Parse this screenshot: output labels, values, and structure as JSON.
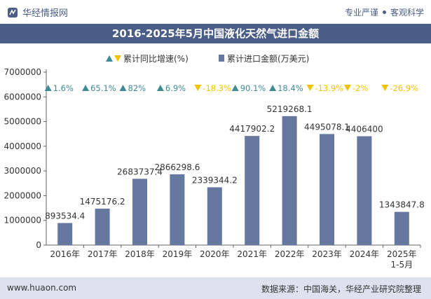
{
  "header": {
    "brand": "华经情报网",
    "tagline_left": "专业严谨",
    "tagline_right": "客观科学"
  },
  "footer": {
    "site": "www.huaon.com",
    "source": "数据来源：中国海关，华经产业研究院整理"
  },
  "colors": {
    "bar": "#6677a0",
    "header": "#4a5d87",
    "up": "#3f8a93",
    "down": "#f2c200"
  },
  "chart_data": {
    "type": "bar",
    "title": "2016-2025年5月中国液化天然气进口金额",
    "categories": [
      "2016年",
      "2017年",
      "2018年",
      "2019年",
      "2020年",
      "2021年",
      "2022年",
      "2023年",
      "2024年",
      "2025年\n1-5月"
    ],
    "series": [
      {
        "name": "累计进口金额(万美元)",
        "values": [
          893534.4,
          1475176.2,
          2683737.4,
          2866298.6,
          2339344.2,
          4417902.2,
          5219268.1,
          4495078.1,
          4406400,
          1343847.8
        ],
        "labels": [
          "893534.4",
          "1475176.2",
          "2683737.4",
          "2866298.6",
          "2339344.2",
          "4417902.2",
          "5219268.1",
          "4495078.1",
          "4406400",
          "1343847.8"
        ]
      },
      {
        "name": "累计同比增速(%)",
        "values": [
          1.6,
          65.1,
          82,
          6.9,
          -18.3,
          90.1,
          18.4,
          -13.9,
          -2,
          -26.9
        ],
        "labels": [
          "1.6%",
          "65.1%",
          "82%",
          "6.9%",
          "-18.3%",
          "90.1%",
          "18.4%",
          "-13.9%",
          "-2%",
          "-26.9%"
        ]
      }
    ],
    "y_ticks": [
      "0",
      "1000000",
      "2000000",
      "3000000",
      "4000000",
      "5000000",
      "6000000",
      "7000000"
    ],
    "ylim": [
      0,
      7000000
    ],
    "legend_position": "top"
  }
}
